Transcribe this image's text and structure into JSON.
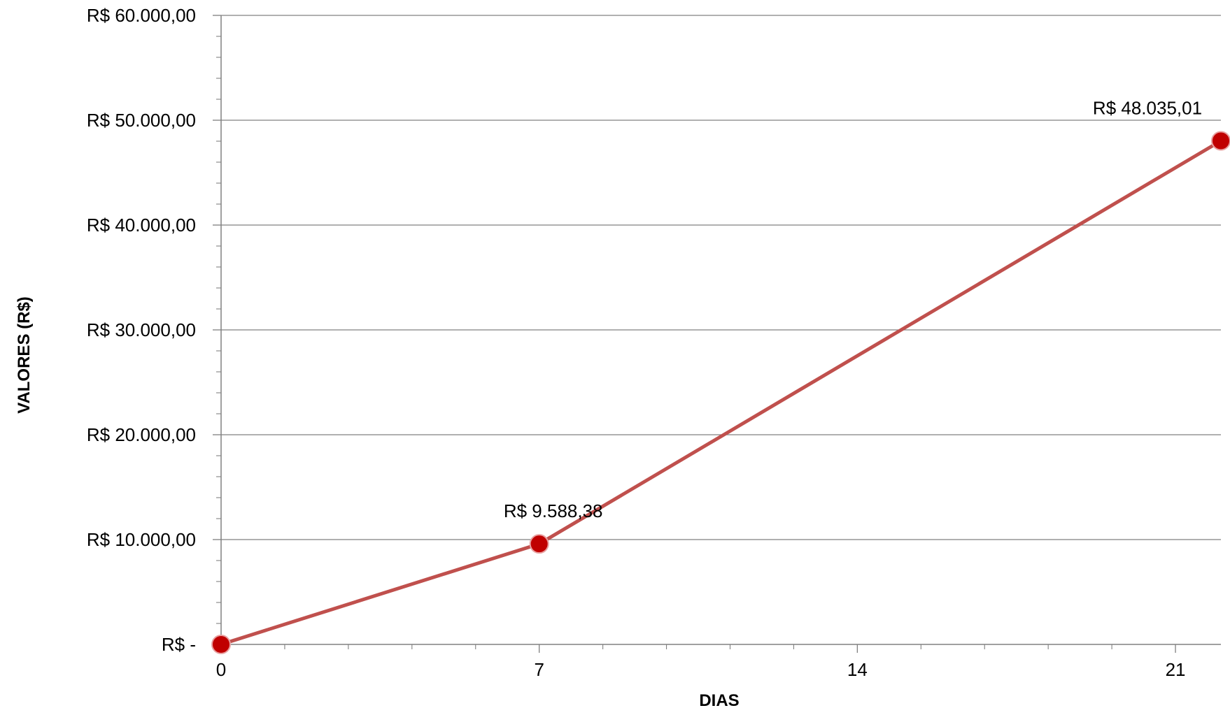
{
  "chart_data": {
    "type": "line",
    "title": "",
    "xlabel": "DIAS",
    "ylabel": "VALORES (R$)",
    "x_ticks": [
      "0",
      "7",
      "14",
      "21"
    ],
    "y_ticks": [
      "R$ -",
      "R$ 10.000,00",
      "R$ 20.000,00",
      "R$ 30.000,00",
      "R$ 40.000,00",
      "R$ 50.000,00",
      "R$ 60.000,00"
    ],
    "xlim": [
      0,
      22
    ],
    "ylim": [
      0,
      60000
    ],
    "grid": "horizontal",
    "legend": "none",
    "colors": {
      "line": "#c0504d",
      "marker": "#c00000",
      "gridline": "#808080",
      "axis": "#808080"
    },
    "series": [
      {
        "x": [
          0,
          7,
          22
        ],
        "values": [
          0,
          9588.38,
          48035.01
        ],
        "data_labels": [
          "",
          "R$ 9.588,38",
          "R$ 48.035,01"
        ]
      }
    ]
  }
}
